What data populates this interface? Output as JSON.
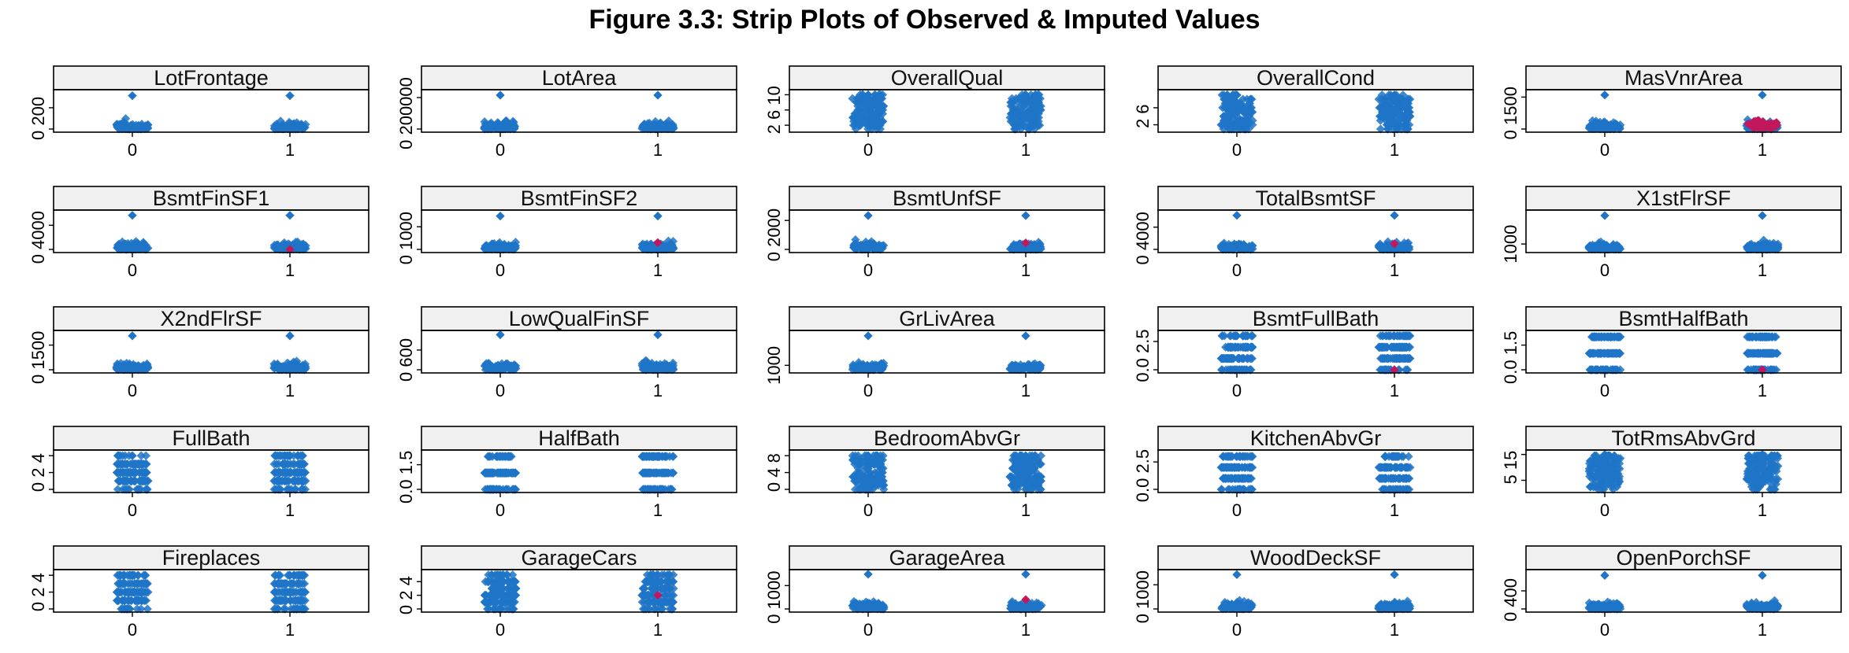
{
  "title": "Figure 3.3: Strip Plots of Observed & Imputed Values",
  "colors": {
    "observed": "#1f74c7",
    "imputed": "#c2185b",
    "strip": "#f0f0f0"
  },
  "chart_data": [
    {
      "type": "scatter",
      "title": "LotFrontage",
      "categories": [
        "0",
        "1"
      ],
      "yticks": [
        "0",
        "200"
      ],
      "ylim": [
        0,
        340
      ],
      "max": 313,
      "imputed": null
    },
    {
      "type": "scatter",
      "title": "LotArea",
      "categories": [
        "0",
        "1"
      ],
      "yticks": [
        "0",
        "200000"
      ],
      "ylim": [
        0,
        230000
      ],
      "max": 215245,
      "imputed": null
    },
    {
      "type": "scatter",
      "title": "OverallQual",
      "categories": [
        "0",
        "1"
      ],
      "yticks": [
        "2",
        "6",
        "10"
      ],
      "ylim": [
        1,
        10.5
      ],
      "max": 10,
      "imputed": null
    },
    {
      "type": "scatter",
      "title": "OverallCond",
      "categories": [
        "0",
        "1"
      ],
      "yticks": [
        "2",
        "6"
      ],
      "ylim": [
        1,
        9.5
      ],
      "max": 9,
      "imputed": null
    },
    {
      "type": "scatter",
      "title": "MasVnrArea",
      "categories": [
        "0",
        "1"
      ],
      "yticks": [
        "0",
        "1500"
      ],
      "ylim": [
        0,
        1700
      ],
      "max": 1600,
      "imputed": {
        "min": 0,
        "max": 400,
        "n": 30
      }
    },
    {
      "type": "scatter",
      "title": "BsmtFinSF1",
      "categories": [
        "0",
        "1"
      ],
      "yticks": [
        "0",
        "4000"
      ],
      "ylim": [
        0,
        6000
      ],
      "max": 5644,
      "imputed": {
        "min": 0,
        "max": 0,
        "n": 1
      }
    },
    {
      "type": "scatter",
      "title": "BsmtFinSF2",
      "categories": [
        "0",
        "1"
      ],
      "yticks": [
        "0",
        "1000"
      ],
      "ylim": [
        0,
        1600
      ],
      "max": 1474,
      "imputed": {
        "min": 300,
        "max": 300,
        "n": 1
      }
    },
    {
      "type": "scatter",
      "title": "BsmtUnfSF",
      "categories": [
        "0",
        "1"
      ],
      "yticks": [
        "0",
        "2000"
      ],
      "ylim": [
        0,
        2500
      ],
      "max": 2336,
      "imputed": {
        "min": 450,
        "max": 450,
        "n": 1
      }
    },
    {
      "type": "scatter",
      "title": "TotalBsmtSF",
      "categories": [
        "0",
        "1"
      ],
      "yticks": [
        "0",
        "4000"
      ],
      "ylim": [
        0,
        6500
      ],
      "max": 6110,
      "imputed": {
        "min": 1000,
        "max": 1000,
        "n": 1
      }
    },
    {
      "type": "scatter",
      "title": "X1stFlrSF",
      "categories": [
        "0",
        "1"
      ],
      "yticks": [
        "1000"
      ],
      "ylim": [
        300,
        5000
      ],
      "max": 4692,
      "imputed": null
    },
    {
      "type": "scatter",
      "title": "X2ndFlrSF",
      "categories": [
        "0",
        "1"
      ],
      "yticks": [
        "0",
        "1500"
      ],
      "ylim": [
        0,
        2200
      ],
      "max": 2065,
      "imputed": null
    },
    {
      "type": "scatter",
      "title": "LowQualFinSF",
      "categories": [
        "0",
        "1"
      ],
      "yticks": [
        "0",
        "600"
      ],
      "ylim": [
        0,
        1100
      ],
      "max": 1064,
      "imputed": null
    },
    {
      "type": "scatter",
      "title": "GrLivArea",
      "categories": [
        "0",
        "1"
      ],
      "yticks": [
        "1000"
      ],
      "ylim": [
        300,
        6000
      ],
      "max": 5642,
      "imputed": null
    },
    {
      "type": "scatter",
      "title": "BsmtFullBath",
      "categories": [
        "0",
        "1"
      ],
      "yticks": [
        "0.0",
        "2.5"
      ],
      "ylim": [
        0,
        3.2
      ],
      "max": 3,
      "imputed": {
        "min": 0,
        "max": 0,
        "n": 1
      }
    },
    {
      "type": "scatter",
      "title": "BsmtHalfBath",
      "categories": [
        "0",
        "1"
      ],
      "yticks": [
        "0.0",
        "1.5"
      ],
      "ylim": [
        0,
        2.2
      ],
      "max": 2,
      "imputed": {
        "min": 0,
        "max": 0,
        "n": 1
      }
    },
    {
      "type": "scatter",
      "title": "FullBath",
      "categories": [
        "0",
        "1"
      ],
      "yticks": [
        "0",
        "2",
        "4"
      ],
      "ylim": [
        0,
        4.3
      ],
      "max": 4,
      "imputed": null
    },
    {
      "type": "scatter",
      "title": "HalfBath",
      "categories": [
        "0",
        "1"
      ],
      "yticks": [
        "0.0",
        "1.5"
      ],
      "ylim": [
        0,
        2.2
      ],
      "max": 2,
      "imputed": null
    },
    {
      "type": "scatter",
      "title": "BedroomAbvGr",
      "categories": [
        "0",
        "1"
      ],
      "yticks": [
        "0",
        "4",
        "8"
      ],
      "ylim": [
        0,
        8.6
      ],
      "max": 8,
      "imputed": null
    },
    {
      "type": "scatter",
      "title": "KitchenAbvGr",
      "categories": [
        "0",
        "1"
      ],
      "yticks": [
        "0.0",
        "2.5"
      ],
      "ylim": [
        0,
        3.3
      ],
      "max": 3,
      "imputed": null
    },
    {
      "type": "scatter",
      "title": "TotRmsAbvGrd",
      "categories": [
        "0",
        "1"
      ],
      "yticks": [
        "5",
        "15"
      ],
      "ylim": [
        1.5,
        15.5
      ],
      "max": 15,
      "imputed": null
    },
    {
      "type": "scatter",
      "title": "Fireplaces",
      "categories": [
        "0",
        "1"
      ],
      "yticks": [
        "0",
        "2",
        "4"
      ],
      "ylim": [
        0,
        4.3
      ],
      "max": 4,
      "imputed": null
    },
    {
      "type": "scatter",
      "title": "GarageCars",
      "categories": [
        "0",
        "1"
      ],
      "yticks": [
        "0",
        "2",
        "4"
      ],
      "ylim": [
        0,
        5.3
      ],
      "max": 5,
      "imputed": {
        "min": 2,
        "max": 2,
        "n": 1
      }
    },
    {
      "type": "scatter",
      "title": "GarageArea",
      "categories": [
        "0",
        "1"
      ],
      "yticks": [
        "0",
        "1000"
      ],
      "ylim": [
        0,
        1550
      ],
      "max": 1488,
      "imputed": {
        "min": 400,
        "max": 400,
        "n": 1
      }
    },
    {
      "type": "scatter",
      "title": "WoodDeckSF",
      "categories": [
        "0",
        "1"
      ],
      "yticks": [
        "0",
        "1000"
      ],
      "ylim": [
        0,
        1500
      ],
      "max": 1424,
      "imputed": null
    },
    {
      "type": "scatter",
      "title": "OpenPorchSF",
      "categories": [
        "0",
        "1"
      ],
      "yticks": [
        "0",
        "400"
      ],
      "ylim": [
        0,
        800
      ],
      "max": 742,
      "imputed": null
    }
  ]
}
